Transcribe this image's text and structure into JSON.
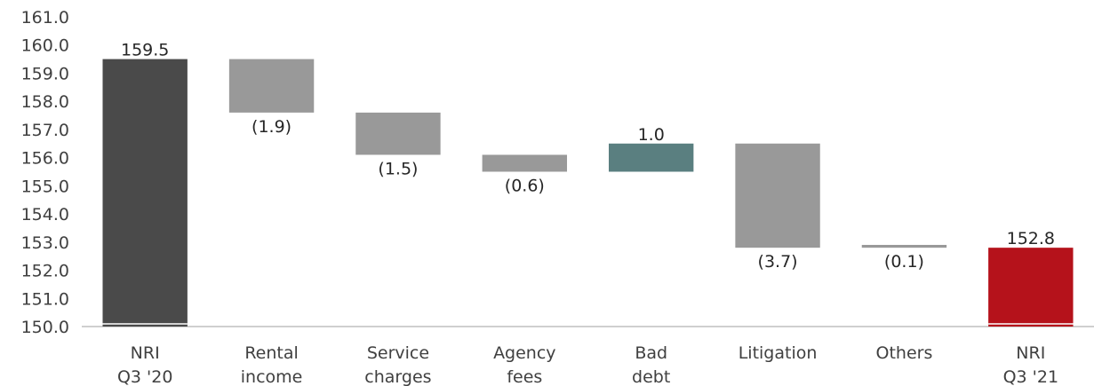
{
  "chart_data": {
    "type": "bar",
    "subtype": "waterfall",
    "title": "",
    "xlabel": "",
    "ylabel": "",
    "ylim": [
      150.0,
      161.0
    ],
    "y_ticks": [
      "150.0",
      "151.0",
      "152.0",
      "153.0",
      "154.0",
      "155.0",
      "156.0",
      "157.0",
      "158.0",
      "159.0",
      "160.0",
      "161.0"
    ],
    "grid": false,
    "legend": "none",
    "bars": [
      {
        "category": [
          "NRI",
          "Q3 '20"
        ],
        "start": 150.0,
        "end": 159.5,
        "label": "159.5",
        "kind": "total",
        "color": "#4a4a4a"
      },
      {
        "category": [
          "Rental",
          "income"
        ],
        "start": 159.5,
        "end": 157.6,
        "label": "(1.9)",
        "kind": "decrease",
        "color": "#999999"
      },
      {
        "category": [
          "Service",
          "charges"
        ],
        "start": 157.6,
        "end": 156.1,
        "label": "(1.5)",
        "kind": "decrease",
        "color": "#999999"
      },
      {
        "category": [
          "Agency",
          "fees"
        ],
        "start": 156.1,
        "end": 155.5,
        "label": "(0.6)",
        "kind": "decrease",
        "color": "#999999"
      },
      {
        "category": [
          "Bad",
          "debt"
        ],
        "start": 155.5,
        "end": 156.5,
        "label": "1.0",
        "kind": "increase",
        "color": "#5a7f80"
      },
      {
        "category": [
          "Litigation"
        ],
        "start": 156.5,
        "end": 152.8,
        "label": "(3.7)",
        "kind": "decrease",
        "color": "#999999"
      },
      {
        "category": [
          "Others"
        ],
        "start": 152.9,
        "end": 152.8,
        "label": "(0.1)",
        "kind": "decrease",
        "color": "#999999"
      },
      {
        "category": [
          "NRI",
          "Q3 '21"
        ],
        "start": 150.0,
        "end": 152.8,
        "label": "152.8",
        "kind": "total",
        "color": "#b5121b"
      }
    ]
  }
}
